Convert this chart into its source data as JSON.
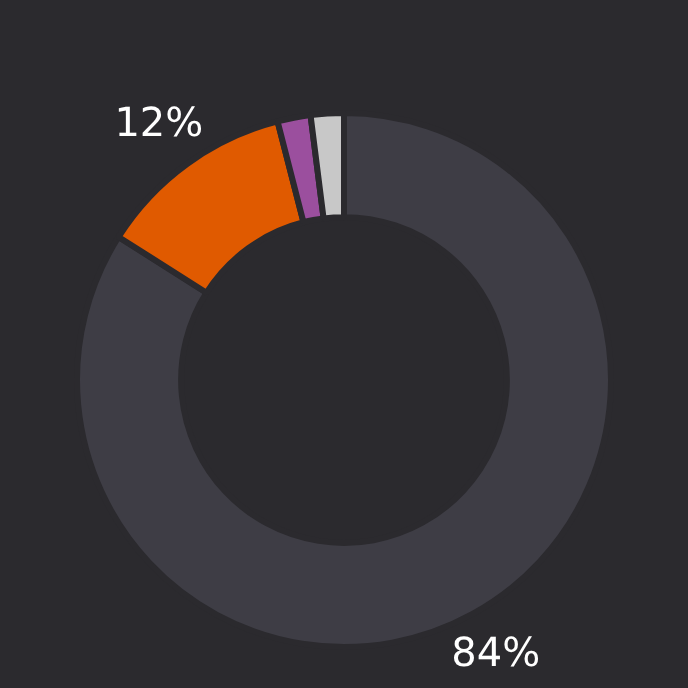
{
  "chart_data": {
    "type": "donut",
    "categories": [
      null,
      null,
      null,
      null
    ],
    "values": [
      84,
      12,
      2,
      2
    ],
    "colors": [
      "#3e3d45",
      "#e05a00",
      "#9b4f9e",
      "#c8c8c8"
    ],
    "value_labels": [
      "84%",
      "12%",
      null,
      null
    ],
    "legend": false
  }
}
